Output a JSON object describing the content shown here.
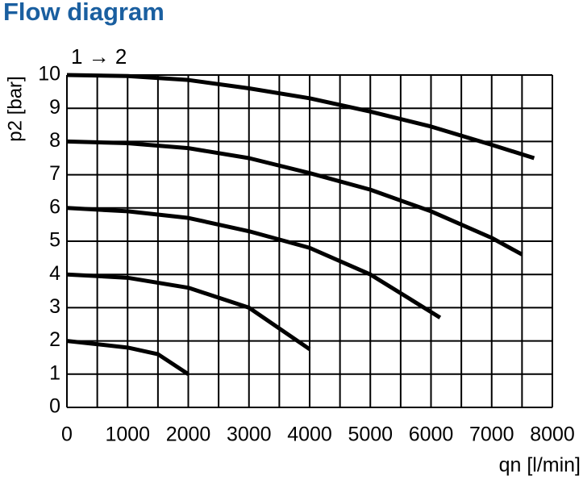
{
  "chart_data": {
    "type": "line",
    "title": "Flow diagram",
    "annotation": "1 → 2",
    "xlabel": "qn [l/min]",
    "ylabel": "p2 [bar]",
    "series": [
      {
        "color": "#000000",
        "x": [
          0,
          1000,
          2000,
          3000,
          4000,
          5000,
          6000,
          7000,
          7700
        ],
        "values": [
          10,
          9.97,
          9.85,
          9.6,
          9.3,
          8.9,
          8.45,
          7.9,
          7.5
        ]
      },
      {
        "color": "#000000",
        "x": [
          0,
          1000,
          2000,
          3000,
          4000,
          5000,
          6000,
          7000,
          7500
        ],
        "values": [
          8,
          7.95,
          7.8,
          7.5,
          7.05,
          6.55,
          5.9,
          5.1,
          4.6
        ]
      },
      {
        "color": "#000000",
        "x": [
          0,
          1000,
          2000,
          3000,
          4000,
          5000,
          6150
        ],
        "values": [
          6,
          5.9,
          5.7,
          5.3,
          4.8,
          4.0,
          2.7
        ]
      },
      {
        "color": "#000000",
        "x": [
          0,
          1000,
          2000,
          3000,
          4000
        ],
        "values": [
          4,
          3.9,
          3.6,
          3.0,
          1.75
        ]
      },
      {
        "color": "#000000",
        "x": [
          0,
          1000,
          1500,
          2000
        ],
        "values": [
          2,
          1.8,
          1.6,
          1.0
        ]
      }
    ],
    "xlim": [
      0,
      8000
    ],
    "xticks": [
      0,
      1000,
      2000,
      3000,
      4000,
      5000,
      6000,
      7000,
      8000
    ],
    "x_minor_ticks": [
      500,
      1500,
      2500,
      3500,
      4500,
      5500,
      6500,
      7500
    ],
    "ylim": [
      0,
      10
    ],
    "yticks": [
      0,
      1,
      2,
      3,
      4,
      5,
      6,
      7,
      8,
      9,
      10
    ],
    "grid": true
  }
}
